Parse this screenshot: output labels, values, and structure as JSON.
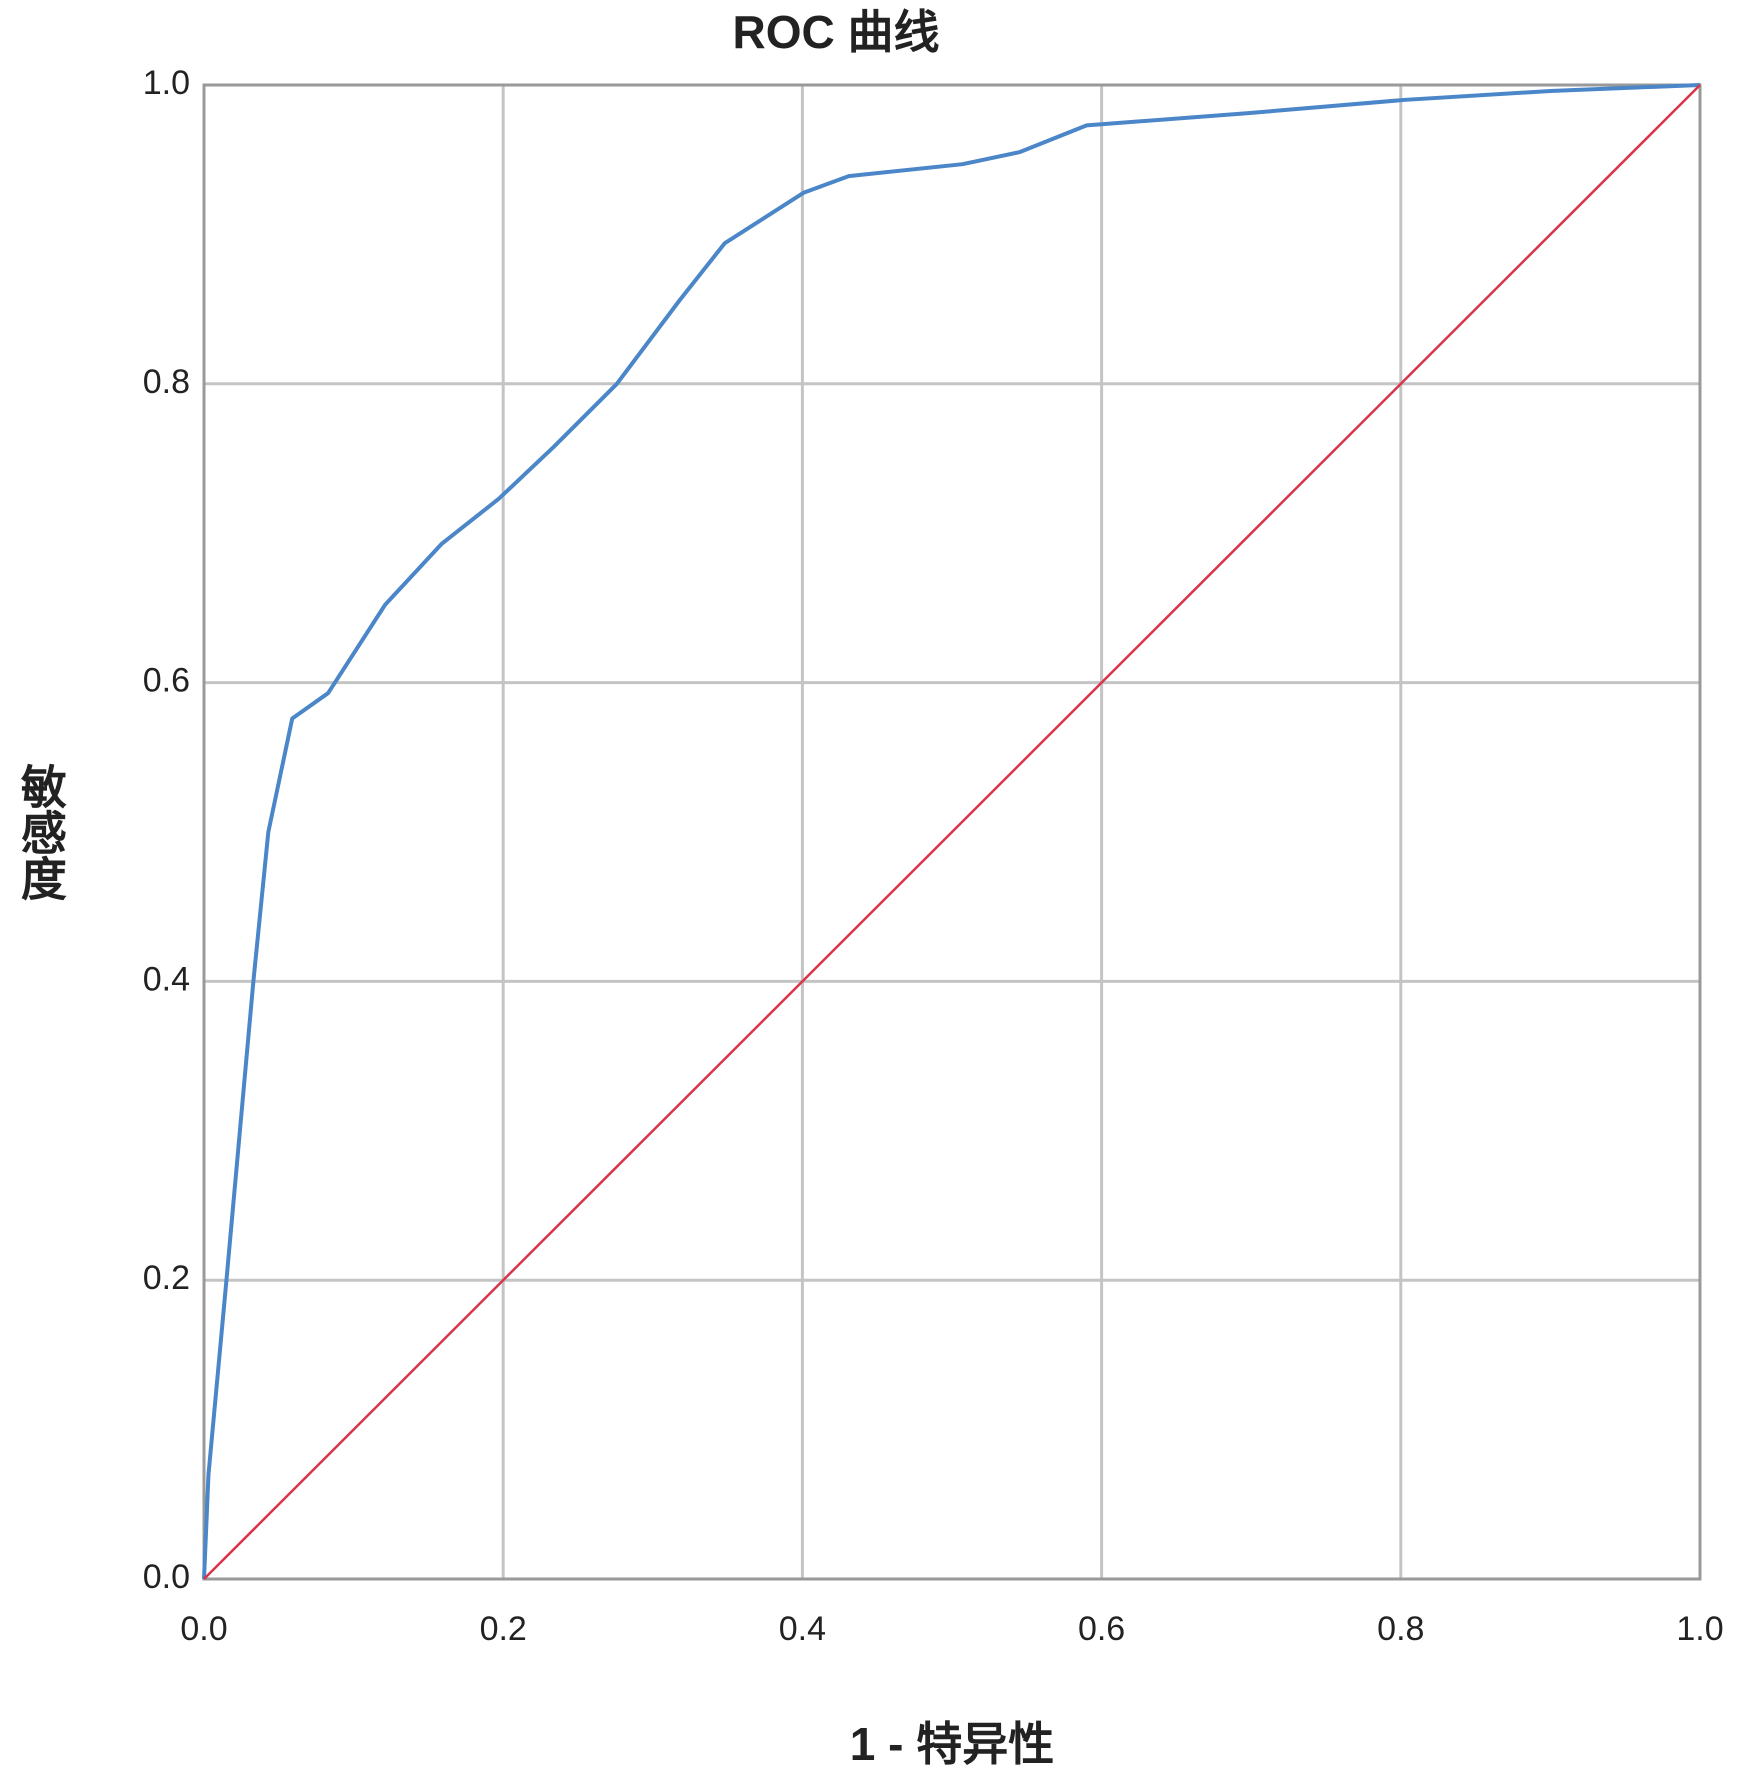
{
  "chart_data": {
    "type": "line",
    "title": "ROC 曲线",
    "xlabel": "1 - 特异性",
    "ylabel": "敏感度",
    "series": [
      {
        "color": "#4a86c8",
        "x": [
          0,
          0.003,
          0.015,
          0.033,
          0.043,
          0.059,
          0.083,
          0.121,
          0.159,
          0.197,
          0.234,
          0.276,
          0.318,
          0.348,
          0.401,
          0.431,
          0.507,
          0.545,
          0.59,
          0.696,
          0.802,
          0.9,
          1
        ],
        "values": [
          0,
          0.07,
          0.2,
          0.4,
          0.5,
          0.576,
          0.593,
          0.652,
          0.693,
          0.723,
          0.758,
          0.8,
          0.856,
          0.894,
          0.928,
          0.939,
          0.947,
          0.955,
          0.973,
          0.981,
          0.99,
          0.996,
          1
        ]
      },
      {
        "color": "#d9344a",
        "x": [
          0,
          1
        ],
        "values": [
          0,
          1
        ]
      }
    ],
    "xlim": [
      0,
      1
    ],
    "ylim": [
      0,
      1
    ],
    "xticks": [
      {
        "value": 0,
        "label": "0.0"
      },
      0.2,
      0.4,
      0.6,
      0.8,
      {
        "value": 1,
        "label": "1.0"
      }
    ],
    "yticks": [
      {
        "value": 0,
        "label": "0.0"
      },
      0.2,
      0.4,
      0.6,
      0.8,
      {
        "value": 1,
        "label": "1.0"
      }
    ],
    "grid": true
  }
}
